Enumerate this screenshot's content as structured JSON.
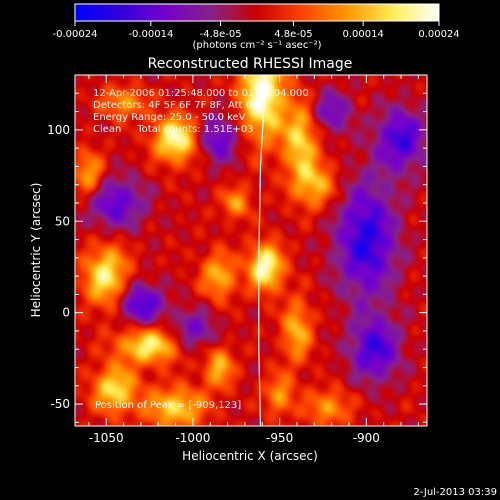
{
  "chart_data": {
    "type": "heatmap",
    "title": "Reconstructed RHESSI Image",
    "xlabel": "Heliocentric X (arcsec)",
    "ylabel": "Heliocentric Y (arcsec)",
    "xlim": [
      -1068,
      -865
    ],
    "ylim": [
      -62,
      130
    ],
    "x_ticks": [
      -1050,
      -1000,
      -950,
      -900
    ],
    "x_tick_labels": [
      "-1050",
      "-1000",
      "-950",
      "-900"
    ],
    "y_ticks": [
      -50,
      0,
      50,
      100
    ],
    "y_tick_labels": [
      "-50",
      "0",
      "50",
      "100"
    ],
    "colorbar": {
      "range": [
        -0.00024,
        0.00024
      ],
      "ticks": [
        -0.00024,
        -0.00014,
        -4.8e-05,
        4.8e-05,
        0.00014,
        0.00024
      ],
      "tick_labels": [
        "-0.00024",
        "-0.00014",
        "-4.8e-05",
        "4.8e-05",
        "0.00014",
        "0.00024"
      ],
      "units_label": "(photons cm⁻² s⁻¹ asec⁻²)",
      "colors": [
        "#0000ff",
        "#3300dd",
        "#7700cc",
        "#882288",
        "#cc0000",
        "#ff4400",
        "#ff9900",
        "#ffee55",
        "#ffffff"
      ]
    },
    "annotations": [
      "12-Apr-2006 01:25:48.000 to 01:27:04.000",
      "Detectors: 4F 5F 6F 7F 8F, Att 0",
      "Energy Range: 25.0 - 50.0 keV",
      "Clean     Total counts: 1.51E+03"
    ],
    "peak_label": "Position of Peak = [-909,123]",
    "peak": [
      -909,
      123
    ],
    "grid": false,
    "sources": [
      {
        "x": -960,
        "y": 120,
        "sx": 9,
        "sy": 18,
        "amp": 1.0
      },
      {
        "x": -1010,
        "y": 95,
        "sx": 9,
        "sy": 9,
        "amp": 0.9
      },
      {
        "x": -958,
        "y": 25,
        "sx": 7,
        "sy": 9,
        "amp": 0.95
      },
      {
        "x": -938,
        "y": 95,
        "sx": 7,
        "sy": 14,
        "amp": 0.7
      },
      {
        "x": -930,
        "y": 70,
        "sx": 9,
        "sy": 9,
        "amp": 0.6
      },
      {
        "x": -1050,
        "y": 20,
        "sx": 9,
        "sy": 12,
        "amp": 0.8
      },
      {
        "x": -1025,
        "y": -18,
        "sx": 13,
        "sy": 7,
        "amp": 0.8
      },
      {
        "x": -1045,
        "y": -42,
        "sx": 9,
        "sy": 9,
        "amp": 0.75
      },
      {
        "x": -1010,
        "y": -52,
        "sx": 12,
        "sy": 8,
        "amp": 0.7
      },
      {
        "x": -985,
        "y": 20,
        "sx": 7,
        "sy": 9,
        "amp": 0.6
      },
      {
        "x": -940,
        "y": -10,
        "sx": 6,
        "sy": 12,
        "amp": 0.6
      },
      {
        "x": -922,
        "y": -52,
        "sx": 9,
        "sy": 7,
        "amp": 0.5
      },
      {
        "x": -975,
        "y": 60,
        "sx": 6,
        "sy": 6,
        "amp": 0.5
      },
      {
        "x": -1060,
        "y": 75,
        "sx": 6,
        "sy": 9,
        "amp": 0.6
      },
      {
        "x": -1040,
        "y": 115,
        "sx": 9,
        "sy": 6,
        "amp": 0.5
      },
      {
        "x": -985,
        "y": -30,
        "sx": 6,
        "sy": 8,
        "amp": 0.6
      },
      {
        "x": -950,
        "y": -45,
        "sx": 6,
        "sy": 8,
        "amp": 0.5
      },
      {
        "x": -1045,
        "y": 60,
        "sx": 12,
        "sy": 10,
        "amp": -0.6
      },
      {
        "x": -1030,
        "y": 5,
        "sx": 9,
        "sy": 8,
        "amp": -0.7
      },
      {
        "x": -900,
        "y": 40,
        "sx": 12,
        "sy": 22,
        "amp": -0.8
      },
      {
        "x": -880,
        "y": 95,
        "sx": 10,
        "sy": 12,
        "amp": -0.7
      },
      {
        "x": -895,
        "y": -20,
        "sx": 10,
        "sy": 12,
        "amp": -0.7
      },
      {
        "x": -985,
        "y": 95,
        "sx": 8,
        "sy": 9,
        "amp": -0.6
      },
      {
        "x": -1000,
        "y": -10,
        "sx": 9,
        "sy": 8,
        "amp": -0.5
      },
      {
        "x": -920,
        "y": 110,
        "sx": 8,
        "sy": 8,
        "amp": -0.5
      }
    ],
    "limb_points": [
      [
        -958,
        130
      ],
      [
        -961,
        80
      ],
      [
        -962,
        30
      ],
      [
        -962,
        -20
      ],
      [
        -961,
        -62
      ]
    ]
  },
  "footer": {
    "date": "2-Jul-2013 03:39"
  }
}
